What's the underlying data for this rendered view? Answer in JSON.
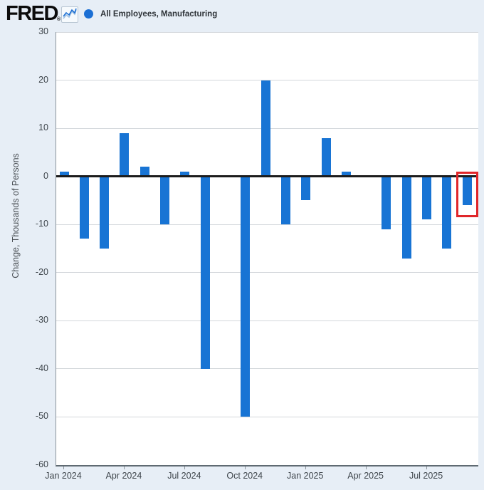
{
  "header": {
    "logo_text": "FRED",
    "registered_mark": "®",
    "legend": {
      "marker_color": "#1b6fd4",
      "label": "All Employees, Manufacturing"
    }
  },
  "chart_data": {
    "type": "bar",
    "title": "",
    "xlabel": "",
    "ylabel": "Change, Thousands of Persons",
    "ylim": [
      -60,
      30
    ],
    "y_ticks": [
      30,
      20,
      10,
      0,
      -10,
      -20,
      -30,
      -40,
      -50,
      -60
    ],
    "grid": true,
    "legend_position": "top",
    "categories": [
      "Jan 2024",
      "Feb 2024",
      "Mar 2024",
      "Apr 2024",
      "May 2024",
      "Jun 2024",
      "Jul 2024",
      "Aug 2024",
      "Sep 2024",
      "Oct 2024",
      "Nov 2024",
      "Dec 2024",
      "Jan 2025",
      "Feb 2025",
      "Mar 2025",
      "Apr 2025",
      "May 2025",
      "Jun 2025",
      "Jul 2025",
      "Aug 2025",
      "Sep 2025"
    ],
    "values": [
      1,
      -13,
      -15,
      9,
      2,
      -10,
      1,
      -40,
      0,
      -50,
      20,
      -10,
      -5,
      8,
      1,
      0,
      -11,
      -17,
      -9,
      -15,
      -6
    ],
    "x_tick_labels": [
      "Jan 2024",
      "Apr 2024",
      "Jul 2024",
      "Oct 2024",
      "Jan 2025",
      "Apr 2025",
      "Jul 2025"
    ],
    "x_tick_indices": [
      0,
      3,
      6,
      9,
      12,
      15,
      18
    ],
    "bar_color": "#1874d4",
    "zero_line_color": "#1c1c1c",
    "background_color": "#e7eef6",
    "plot_background": "#ffffff",
    "gridline_color": "#d3d7db",
    "highlight": {
      "category": "Sep 2025",
      "index": 20,
      "box_color": "#e0262a"
    }
  }
}
